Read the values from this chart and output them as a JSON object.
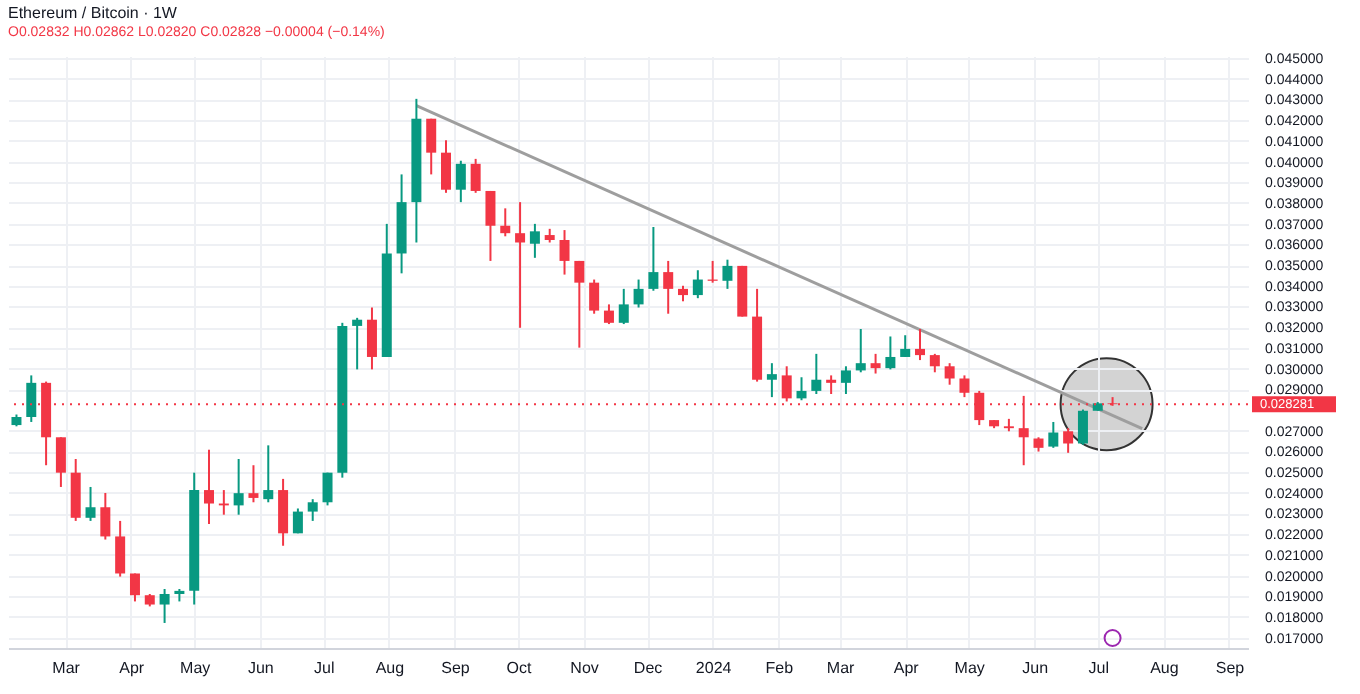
{
  "chart_data": {
    "type": "candlestick",
    "title": "Ethereum / Bitcoin · 1W",
    "subtitle": "O0.02832 H0.02862 L0.02820 C0.02828 −0.00004 (−0.14%)",
    "x": [
      "2023-02-06",
      "2023-02-13",
      "2023-02-20",
      "2023-02-27",
      "2023-03-06",
      "2023-03-13",
      "2023-03-20",
      "2023-03-27",
      "2023-04-03",
      "2023-04-10",
      "2023-04-17",
      "2023-04-24",
      "2023-05-01",
      "2023-05-08",
      "2023-05-15",
      "2023-05-22",
      "2023-05-29",
      "2023-06-05",
      "2023-06-12",
      "2023-06-19",
      "2023-06-26",
      "2023-07-03",
      "2023-07-10",
      "2023-07-17",
      "2023-07-24",
      "2023-07-31",
      "2023-08-07",
      "2023-08-14",
      "2023-08-21",
      "2023-08-28",
      "2023-09-04",
      "2023-09-11",
      "2023-09-18",
      "2023-09-25",
      "2023-10-02",
      "2023-10-09",
      "2023-10-16",
      "2023-10-23",
      "2023-10-30",
      "2023-11-06",
      "2023-11-13",
      "2023-11-20",
      "2023-11-27",
      "2023-12-04",
      "2023-12-11",
      "2023-12-18",
      "2023-12-25",
      "2024-01-01",
      "2024-01-08",
      "2024-01-15",
      "2024-01-22",
      "2024-01-29",
      "2024-02-05",
      "2024-02-12",
      "2024-02-19",
      "2024-02-26",
      "2024-03-04",
      "2024-03-11",
      "2024-03-18",
      "2024-03-25",
      "2024-04-01",
      "2024-04-08",
      "2024-04-15",
      "2024-04-22",
      "2024-04-29",
      "2024-05-06",
      "2024-05-13",
      "2024-05-20",
      "2024-05-27",
      "2024-06-03",
      "2024-06-10",
      "2024-06-17",
      "2024-06-24",
      "2024-07-01",
      "2024-07-08"
    ],
    "ohlc": [
      [
        0.02727,
        0.02778,
        0.02721,
        0.02766
      ],
      [
        0.02766,
        0.02967,
        0.02742,
        0.02931
      ],
      [
        0.02931,
        0.02937,
        0.02533,
        0.02668
      ],
      [
        0.02668,
        0.02668,
        0.02428,
        0.02497
      ],
      [
        0.02497,
        0.02563,
        0.02264,
        0.02279
      ],
      [
        0.02279,
        0.02428,
        0.02264,
        0.0233
      ],
      [
        0.0233,
        0.02399,
        0.02174,
        0.02189
      ],
      [
        0.02189,
        0.02264,
        0.01995,
        0.0201
      ],
      [
        0.0201,
        0.0201,
        0.01875,
        0.01905
      ],
      [
        0.01905,
        0.01911,
        0.01851,
        0.0186
      ],
      [
        0.0186,
        0.01935,
        0.01771,
        0.01911
      ],
      [
        0.01911,
        0.01935,
        0.01875,
        0.01926
      ],
      [
        0.01926,
        0.02497,
        0.0186,
        0.02413
      ],
      [
        0.02413,
        0.02608,
        0.02249,
        0.02348
      ],
      [
        0.02348,
        0.02413,
        0.02294,
        0.02339
      ],
      [
        0.02339,
        0.02563,
        0.02294,
        0.02398
      ],
      [
        0.02398,
        0.02533,
        0.02354,
        0.02375
      ],
      [
        0.02369,
        0.02629,
        0.02354,
        0.02413
      ],
      [
        0.02413,
        0.02467,
        0.02144,
        0.02204
      ],
      [
        0.02204,
        0.02324,
        0.02204,
        0.02309
      ],
      [
        0.02309,
        0.02369,
        0.02264,
        0.02354
      ],
      [
        0.02354,
        0.02497,
        0.02339,
        0.02497
      ],
      [
        0.02497,
        0.03221,
        0.02473,
        0.03206
      ],
      [
        0.03206,
        0.03245,
        0.02996,
        0.03236
      ],
      [
        0.03236,
        0.03295,
        0.02996,
        0.03056
      ],
      [
        0.03056,
        0.03699,
        0.03056,
        0.03556
      ],
      [
        0.03556,
        0.03938,
        0.0346,
        0.03804
      ],
      [
        0.03804,
        0.04303,
        0.03609,
        0.04207
      ],
      [
        0.04207,
        0.04207,
        0.03938,
        0.04043
      ],
      [
        0.04043,
        0.04103,
        0.03849,
        0.03864
      ],
      [
        0.03864,
        0.04004,
        0.03804,
        0.03989
      ],
      [
        0.03989,
        0.04013,
        0.03849,
        0.03858
      ],
      [
        0.03858,
        0.03858,
        0.0352,
        0.0369
      ],
      [
        0.0369,
        0.03774,
        0.03639,
        0.03654
      ],
      [
        0.03654,
        0.03804,
        0.03197,
        0.03609
      ],
      [
        0.03603,
        0.03699,
        0.03535,
        0.03663
      ],
      [
        0.03645,
        0.03675,
        0.03609,
        0.03621
      ],
      [
        0.03621,
        0.03669,
        0.03454,
        0.0352
      ],
      [
        0.0352,
        0.0352,
        0.03101,
        0.03415
      ],
      [
        0.03415,
        0.0343,
        0.03265,
        0.0328
      ],
      [
        0.0328,
        0.0331,
        0.03215,
        0.03221
      ],
      [
        0.03221,
        0.03385,
        0.03215,
        0.0331
      ],
      [
        0.0331,
        0.0343,
        0.03295,
        0.03385
      ],
      [
        0.03385,
        0.03684,
        0.03376,
        0.03466
      ],
      [
        0.03466,
        0.0352,
        0.03265,
        0.03385
      ],
      [
        0.03385,
        0.034,
        0.03325,
        0.03355
      ],
      [
        0.03355,
        0.03475,
        0.0334,
        0.0343
      ],
      [
        0.0343,
        0.0352,
        0.03415,
        0.03424
      ],
      [
        0.03424,
        0.03526,
        0.03385,
        0.03496
      ],
      [
        0.03496,
        0.03496,
        0.03251,
        0.03251
      ],
      [
        0.03251,
        0.03385,
        0.02937,
        0.02946
      ],
      [
        0.02946,
        0.03026,
        0.02862,
        0.02973
      ],
      [
        0.02967,
        0.03011,
        0.02841,
        0.02856
      ],
      [
        0.02856,
        0.02958,
        0.02847,
        0.02892
      ],
      [
        0.02892,
        0.03071,
        0.02877,
        0.02946
      ],
      [
        0.02946,
        0.02967,
        0.02877,
        0.02931
      ],
      [
        0.02931,
        0.03011,
        0.02877,
        0.02991
      ],
      [
        0.02991,
        0.03191,
        0.02982,
        0.03026
      ],
      [
        0.03026,
        0.03071,
        0.02976,
        0.03002
      ],
      [
        0.03002,
        0.03155,
        0.02996,
        0.03056
      ],
      [
        0.03056,
        0.03161,
        0.03056,
        0.03095
      ],
      [
        0.03095,
        0.03191,
        0.03041,
        0.03065
      ],
      [
        0.03065,
        0.03071,
        0.02982,
        0.03011
      ],
      [
        0.03011,
        0.03026,
        0.02922,
        0.02952
      ],
      [
        0.02952,
        0.02967,
        0.02862,
        0.02883
      ],
      [
        0.02883,
        0.02892,
        0.02727,
        0.02751
      ],
      [
        0.02751,
        0.02751,
        0.02712,
        0.02721
      ],
      [
        0.02721,
        0.02757,
        0.02697,
        0.02712
      ],
      [
        0.02712,
        0.02868,
        0.02533,
        0.02668
      ],
      [
        0.02662,
        0.02668,
        0.02599,
        0.02617
      ],
      [
        0.02623,
        0.02742,
        0.02617,
        0.02691
      ],
      [
        0.02697,
        0.02712,
        0.02593,
        0.02638
      ],
      [
        0.02638,
        0.02802,
        0.02632,
        0.02796
      ],
      [
        0.02796,
        0.02838,
        0.02796,
        0.02832
      ],
      [
        0.02832,
        0.02862,
        0.0282,
        0.02828
      ]
    ],
    "colors": [
      "#089981",
      "#089981",
      "#f23645",
      "#f23645",
      "#f23645",
      "#089981",
      "#f23645",
      "#f23645",
      "#f23645",
      "#f23645",
      "#089981",
      "#089981",
      "#089981",
      "#f23645",
      "#f23645",
      "#089981",
      "#f23645",
      "#089981",
      "#f23645",
      "#089981",
      "#089981",
      "#089981",
      "#089981",
      "#089981",
      "#f23645",
      "#089981",
      "#089981",
      "#089981",
      "#f23645",
      "#f23645",
      "#089981",
      "#f23645",
      "#f23645",
      "#f23645",
      "#f23645",
      "#089981",
      "#f23645",
      "#f23645",
      "#f23645",
      "#f23645",
      "#f23645",
      "#089981",
      "#089981",
      "#089981",
      "#f23645",
      "#f23645",
      "#089981",
      "#f23645",
      "#089981",
      "#f23645",
      "#f23645",
      "#089981",
      "#f23645",
      "#089981",
      "#089981",
      "#f23645",
      "#089981",
      "#089981",
      "#f23645",
      "#089981",
      "#089981",
      "#f23645",
      "#f23645",
      "#f23645",
      "#f23645",
      "#f23645",
      "#f23645",
      "#f23645",
      "#f23645",
      "#f23645",
      "#089981",
      "#f23645",
      "#089981",
      "#089981",
      "#f23645"
    ],
    "series": [
      {
        "type": "line",
        "x": [
          "2023-08-14",
          "2024-07-22"
        ],
        "values": [
          0.0427,
          0.0271
        ],
        "color": "#9e9e9e"
      }
    ],
    "ref_lines": [
      {
        "axis": "y",
        "value": 0.028281,
        "label": "0.028281",
        "color": "#f23645",
        "line_style": "dotted"
      }
    ],
    "xlim": [
      "2023-02-02",
      "2024-09-10"
    ],
    "xticks": [
      {
        "value": "2023-03-01",
        "label": "Mar"
      },
      {
        "value": "2023-04-01",
        "label": "Apr"
      },
      {
        "value": "2023-05-01",
        "label": "May"
      },
      {
        "value": "2023-06-01",
        "label": "Jun"
      },
      {
        "value": "2023-07-01",
        "label": "Jul"
      },
      {
        "value": "2023-08-01",
        "label": "Aug"
      },
      {
        "value": "2023-09-01",
        "label": "Sep"
      },
      {
        "value": "2023-10-01",
        "label": "Oct"
      },
      {
        "value": "2023-11-01",
        "label": "Nov"
      },
      {
        "value": "2023-12-01",
        "label": "Dec"
      },
      {
        "value": "2024-01-01",
        "label": "2024"
      },
      {
        "value": "2024-02-01",
        "label": "Feb"
      },
      {
        "value": "2024-03-01",
        "label": "Mar"
      },
      {
        "value": "2024-04-01",
        "label": "Apr"
      },
      {
        "value": "2024-05-01",
        "label": "May"
      },
      {
        "value": "2024-06-01",
        "label": "Jun"
      },
      {
        "value": "2024-07-01",
        "label": "Jul"
      },
      {
        "value": "2024-08-01",
        "label": "Aug"
      },
      {
        "value": "2024-09-01",
        "label": "Sep"
      }
    ],
    "ylim": [
      0.0165,
      0.0451
    ],
    "yticks": [
      {
        "value": 0.017,
        "label": "0.017000"
      },
      {
        "value": 0.018,
        "label": "0.018000"
      },
      {
        "value": 0.019,
        "label": "0.019000"
      },
      {
        "value": 0.02,
        "label": "0.020000"
      },
      {
        "value": 0.021,
        "label": "0.021000"
      },
      {
        "value": 0.022,
        "label": "0.022000"
      },
      {
        "value": 0.023,
        "label": "0.023000"
      },
      {
        "value": 0.024,
        "label": "0.024000"
      },
      {
        "value": 0.025,
        "label": "0.025000"
      },
      {
        "value": 0.026,
        "label": "0.026000"
      },
      {
        "value": 0.027,
        "label": "0.027000"
      },
      {
        "value": 0.029,
        "label": "0.029000"
      },
      {
        "value": 0.03,
        "label": "0.030000"
      },
      {
        "value": 0.031,
        "label": "0.031000"
      },
      {
        "value": 0.032,
        "label": "0.032000"
      },
      {
        "value": 0.033,
        "label": "0.033000"
      },
      {
        "value": 0.034,
        "label": "0.034000"
      },
      {
        "value": 0.035,
        "label": "0.035000"
      },
      {
        "value": 0.036,
        "label": "0.036000"
      },
      {
        "value": 0.037,
        "label": "0.037000"
      },
      {
        "value": 0.038,
        "label": "0.038000"
      },
      {
        "value": 0.039,
        "label": "0.039000"
      },
      {
        "value": 0.04,
        "label": "0.040000"
      },
      {
        "value": 0.041,
        "label": "0.041000"
      },
      {
        "value": 0.042,
        "label": "0.042000"
      },
      {
        "value": 0.043,
        "label": "0.043000"
      },
      {
        "value": 0.044,
        "label": "0.044000"
      },
      {
        "value": 0.045,
        "label": "0.045000"
      }
    ],
    "grid": true
  }
}
